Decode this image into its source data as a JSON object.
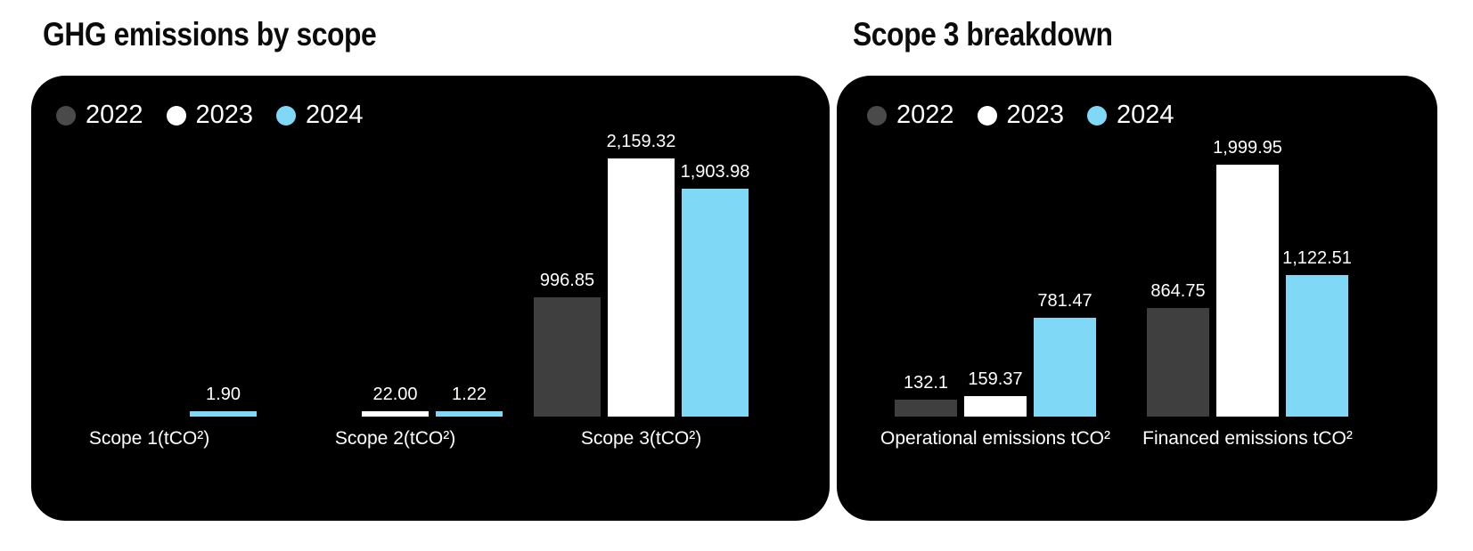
{
  "page": {
    "background": "#ffffff",
    "panel_background": "#000000",
    "title_color": "#0b0b0b",
    "label_color": "#ffffff"
  },
  "legend": {
    "position": "top-left",
    "items": [
      {
        "label": "2022",
        "color": "#4a4a4a"
      },
      {
        "label": "2023",
        "color": "#ffffff"
      },
      {
        "label": "2024",
        "color": "#7ed8f6"
      }
    ]
  },
  "chart_data": [
    {
      "type": "bar",
      "title": "GHG emissions by scope",
      "categories": [
        "Scope 1(tCO²)",
        "Scope 2(tCO²)",
        "Scope 3(tCO²)"
      ],
      "series": [
        {
          "name": "2022",
          "color": "#3f3f3f",
          "values": [
            null,
            null,
            996.85
          ],
          "labels": [
            "",
            "",
            "996.85"
          ]
        },
        {
          "name": "2023",
          "color": "#ffffff",
          "values": [
            null,
            22.0,
            2159.32
          ],
          "labels": [
            "",
            "22.00",
            "2,159.32"
          ]
        },
        {
          "name": "2024",
          "color": "#7ed8f6",
          "values": [
            1.9,
            1.22,
            1903.98
          ],
          "labels": [
            "1.90",
            "1.22",
            "1,903.98"
          ]
        }
      ],
      "ylim": [
        0,
        2159.32
      ],
      "value_labels": true,
      "grid": false,
      "axes_hidden": true,
      "legend_position": "top-left"
    },
    {
      "type": "bar",
      "title": "Scope 3 breakdown",
      "categories": [
        "Operational emissions tCO²",
        "Financed emissions tCO²"
      ],
      "series": [
        {
          "name": "2022",
          "color": "#3f3f3f",
          "values": [
            132.1,
            864.75
          ],
          "labels": [
            "132.1",
            "864.75"
          ]
        },
        {
          "name": "2023",
          "color": "#ffffff",
          "values": [
            159.37,
            1999.95
          ],
          "labels": [
            "159.37",
            "1,999.95"
          ]
        },
        {
          "name": "2024",
          "color": "#7ed8f6",
          "values": [
            781.47,
            1122.51
          ],
          "labels": [
            "781.47",
            "1,122.51"
          ]
        }
      ],
      "ylim": [
        0,
        1999.95
      ],
      "value_labels": true,
      "grid": false,
      "axes_hidden": true,
      "legend_position": "top-left"
    }
  ]
}
